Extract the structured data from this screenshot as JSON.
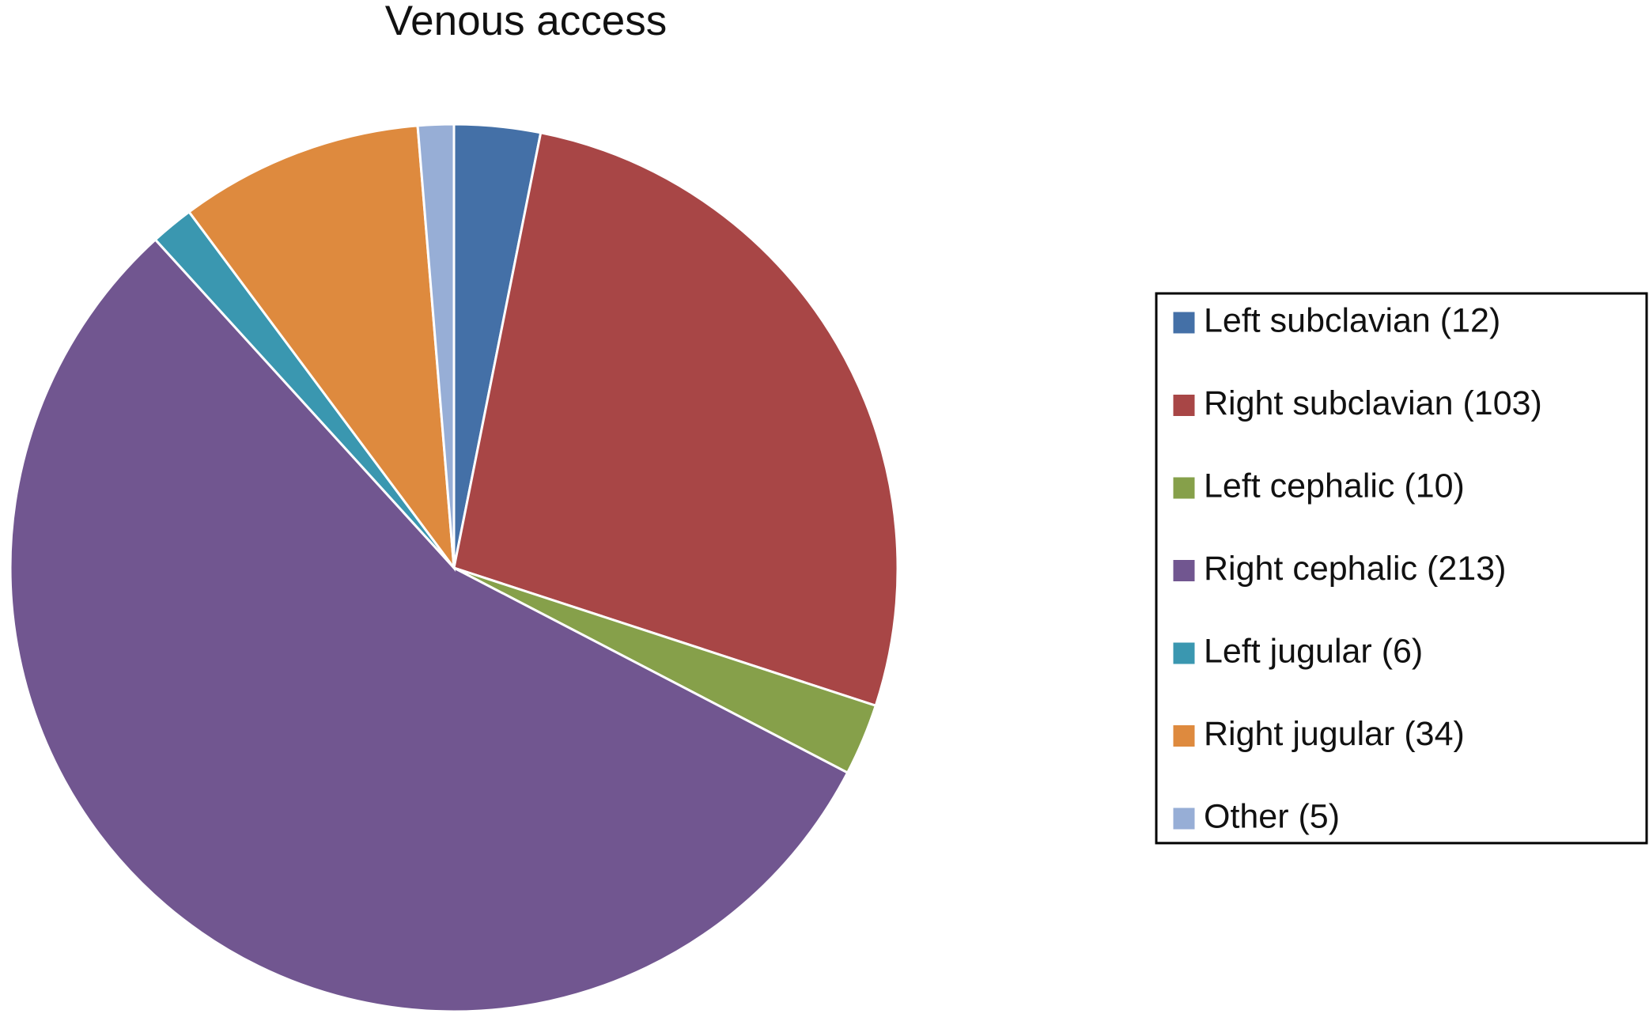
{
  "chart_data": {
    "type": "pie",
    "title": "Venous access",
    "categories": [
      "Left subclavian (12)",
      "Right subclavian (103)",
      "Left cephalic (10)",
      "Right cephalic (213)",
      "Left jugular (6)",
      "Right jugular (34)",
      "Other (5)"
    ],
    "values": [
      12,
      103,
      10,
      213,
      6,
      34,
      5
    ],
    "colors": [
      "#4470a7",
      "#a84646",
      "#86a04a",
      "#715690",
      "#3a97b0",
      "#de8a3e",
      "#97aed6"
    ],
    "legend": "right"
  }
}
